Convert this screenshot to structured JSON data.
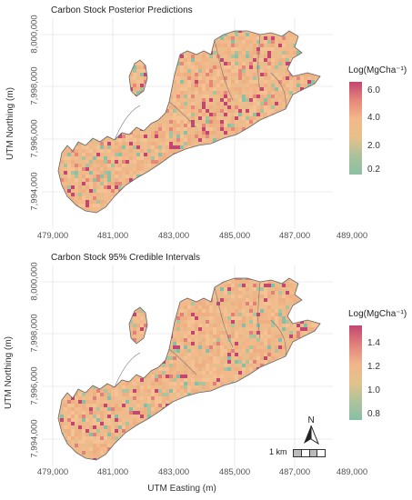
{
  "panels": [
    {
      "title": "Carbon Stock Posterior Predictions",
      "legend": {
        "title": "Log(MgCha⁻¹)",
        "ticks": [
          "6.0",
          "4.0",
          "2.0",
          "0.2"
        ],
        "colors": [
          "#c2466f",
          "#e6877a",
          "#f3b98a",
          "#e8c089",
          "#a9c29b",
          "#8dbfa3"
        ]
      }
    },
    {
      "title": "Carbon Stock 95% Credible Intervals",
      "legend": {
        "title": "Log(MgCha⁻¹)",
        "ticks": [
          "1.4",
          "1.2",
          "1.0",
          "0.8"
        ],
        "colors": [
          "#c2466f",
          "#e0807a",
          "#f0b48c",
          "#e4c28c",
          "#aec39b",
          "#87bfa6"
        ]
      }
    }
  ],
  "axes": {
    "x_label": "UTM Easting (m)",
    "y_label": "UTM Northing (m)",
    "x_ticks": [
      "479,000",
      "481,000",
      "483,000",
      "485,000",
      "487,000",
      "489,000"
    ],
    "y_ticks": [
      "7,994,000",
      "7,996,000",
      "7,998,000",
      "8,000,000"
    ]
  },
  "map_extras": {
    "north_label": "N",
    "scale_label": "1 km"
  }
}
